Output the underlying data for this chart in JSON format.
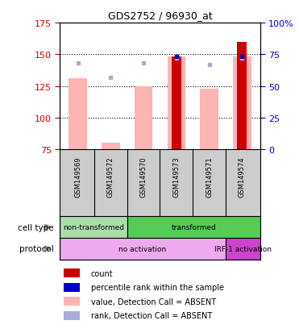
{
  "title": "GDS2752 / 96930_at",
  "samples": [
    "GSM149569",
    "GSM149572",
    "GSM149570",
    "GSM149573",
    "GSM149571",
    "GSM149574"
  ],
  "bar_bottom": 75,
  "ylim_left": [
    75,
    175
  ],
  "ylim_right": [
    0,
    100
  ],
  "yticks_left": [
    75,
    100,
    125,
    150,
    175
  ],
  "yticks_right": [
    0,
    25,
    50,
    75,
    100
  ],
  "yright_labels": [
    "0",
    "25",
    "50",
    "75",
    "100%"
  ],
  "pink_bar_tops": [
    131,
    80,
    125,
    148,
    123,
    148
  ],
  "red_bar_tops": [
    75,
    75,
    75,
    148,
    75,
    160
  ],
  "blue_dot_y": [
    143,
    132,
    143,
    147,
    142,
    147
  ],
  "blue_sq_y": [
    null,
    null,
    null,
    148,
    null,
    148
  ],
  "pink_bar_color": "#FFB3B3",
  "red_bar_color": "#CC0000",
  "blue_dot_color": "#AAAADD",
  "blue_sq_color": "#0000CC",
  "cell_type_colors": [
    "#AADDAA",
    "#55CC55"
  ],
  "cell_type_labels": [
    "non-transformed",
    "transformed"
  ],
  "cell_type_spans": [
    0,
    2,
    6
  ],
  "protocol_colors": [
    "#EEAAEE",
    "#CC44CC"
  ],
  "protocol_labels": [
    "no activation",
    "IRF-1 activation"
  ],
  "protocol_spans": [
    0,
    5,
    6
  ],
  "axis_label_color_left": "#CC0000",
  "axis_label_color_right": "#0000CC",
  "background_color": "#FFFFFF",
  "plot_bg_color": "#FFFFFF",
  "xticklabel_bg": "#CCCCCC",
  "grid_color": "#000000"
}
